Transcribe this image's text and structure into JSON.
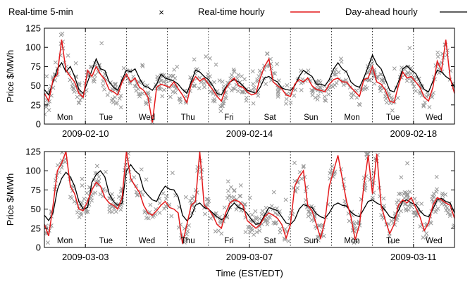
{
  "legend": {
    "rt5": "Real-time 5-min",
    "rthourly": "Real-time hourly",
    "dahourly": "Day-ahead hourly"
  },
  "colors": {
    "rt5": "#999999",
    "rthourly": "#e41a1c",
    "dahourly": "#000000"
  },
  "chart_data": [
    {
      "type": "line",
      "ylabel": "Price $/MWh",
      "ylim": [
        0,
        125
      ],
      "yticks": [
        0,
        25,
        50,
        75,
        100,
        125
      ],
      "grid": "vertical dotted lines at day boundaries",
      "days": [
        "Mon",
        "Tue",
        "Wed",
        "Thu",
        "Fri",
        "Sat",
        "Sun",
        "Mon",
        "Tue",
        "Wed"
      ],
      "date_ticks": [
        {
          "day_index": 1,
          "label": "2009-02-10"
        },
        {
          "day_index": 5,
          "label": "2009-02-14"
        },
        {
          "day_index": 9,
          "label": "2009-02-18"
        }
      ],
      "series": [
        {
          "name": "Day-ahead hourly",
          "values": [
            45,
            38,
            55,
            72,
            80,
            68,
            75,
            62,
            45,
            40,
            55,
            70,
            85,
            72,
            70,
            55,
            48,
            44,
            58,
            70,
            68,
            72,
            60,
            50,
            48,
            44,
            52,
            65,
            60,
            58,
            56,
            52,
            45,
            40,
            55,
            70,
            68,
            62,
            58,
            50,
            40,
            38,
            48,
            55,
            58,
            55,
            50,
            44,
            42,
            40,
            48,
            60,
            62,
            58,
            55,
            47,
            45,
            44,
            50,
            62,
            70,
            66,
            62,
            52,
            52,
            50,
            58,
            72,
            80,
            72,
            68,
            55,
            50,
            48,
            60,
            75,
            90,
            78,
            72,
            58,
            44,
            42,
            55,
            72,
            76,
            70,
            66,
            55,
            45,
            42,
            56,
            70,
            68,
            62,
            58,
            48
          ]
        },
        {
          "name": "Real-time hourly",
          "values": [
            40,
            30,
            58,
            65,
            110,
            70,
            62,
            55,
            40,
            35,
            70,
            62,
            75,
            65,
            58,
            45,
            42,
            38,
            55,
            65,
            55,
            60,
            48,
            44,
            35,
            2,
            48,
            52,
            50,
            48,
            55,
            46,
            38,
            28,
            52,
            62,
            56,
            60,
            52,
            45,
            36,
            30,
            46,
            55,
            60,
            50,
            48,
            42,
            38,
            40,
            60,
            75,
            85,
            55,
            50,
            46,
            38,
            36,
            52,
            58,
            55,
            60,
            50,
            45,
            44,
            42,
            52,
            58,
            60,
            55,
            55,
            48,
            42,
            36,
            58,
            60,
            75,
            55,
            52,
            44,
            30,
            28,
            50,
            68,
            60,
            62,
            55,
            48,
            35,
            30,
            48,
            82,
            70,
            110,
            60,
            40
          ]
        }
      ]
    },
    {
      "type": "line",
      "ylabel": "Price $/MWh",
      "xlabel": "Time (EST/EDT)",
      "ylim": [
        0,
        125
      ],
      "yticks": [
        0,
        25,
        50,
        75,
        100,
        125
      ],
      "grid": "vertical dotted lines at day boundaries",
      "days": [
        "Mon",
        "Tue",
        "Wed",
        "Thu",
        "Fri",
        "Sat",
        "Sun",
        "Mon",
        "Tue",
        "Wed"
      ],
      "date_ticks": [
        {
          "day_index": 1,
          "label": "2009-03-03"
        },
        {
          "day_index": 5,
          "label": "2009-03-07"
        },
        {
          "day_index": 9,
          "label": "2009-03-11"
        }
      ],
      "series": [
        {
          "name": "Day-ahead hourly",
          "values": [
            42,
            35,
            45,
            75,
            90,
            98,
            92,
            80,
            60,
            50,
            52,
            85,
            95,
            100,
            92,
            70,
            60,
            55,
            58,
            100,
            108,
            100,
            95,
            75,
            68,
            62,
            60,
            72,
            80,
            76,
            75,
            66,
            42,
            35,
            40,
            55,
            58,
            52,
            50,
            45,
            40,
            36,
            40,
            52,
            58,
            52,
            50,
            44,
            36,
            30,
            32,
            42,
            52,
            50,
            48,
            40,
            32,
            30,
            36,
            50,
            56,
            54,
            52,
            44,
            40,
            38,
            45,
            55,
            58,
            55,
            54,
            46,
            42,
            40,
            50,
            60,
            62,
            58,
            55,
            48,
            40,
            38,
            48,
            60,
            62,
            58,
            56,
            48,
            42,
            40,
            50,
            62,
            64,
            60,
            58,
            45
          ]
        },
        {
          "name": "Real-time hourly",
          "values": [
            30,
            15,
            55,
            100,
            110,
            125,
            80,
            70,
            50,
            48,
            60,
            75,
            85,
            80,
            65,
            58,
            55,
            50,
            65,
            125,
            90,
            80,
            72,
            55,
            45,
            42,
            48,
            55,
            60,
            52,
            50,
            45,
            5,
            30,
            55,
            60,
            125,
            55,
            50,
            42,
            30,
            25,
            45,
            58,
            62,
            60,
            55,
            35,
            30,
            25,
            30,
            40,
            45,
            42,
            38,
            30,
            12,
            30,
            80,
            92,
            100,
            55,
            48,
            30,
            12,
            35,
            80,
            100,
            120,
            90,
            60,
            40,
            10,
            30,
            80,
            120,
            70,
            122,
            55,
            35,
            18,
            30,
            55,
            62,
            58,
            65,
            52,
            40,
            22,
            32,
            55,
            65,
            62,
            58,
            55,
            38
          ]
        }
      ]
    }
  ]
}
